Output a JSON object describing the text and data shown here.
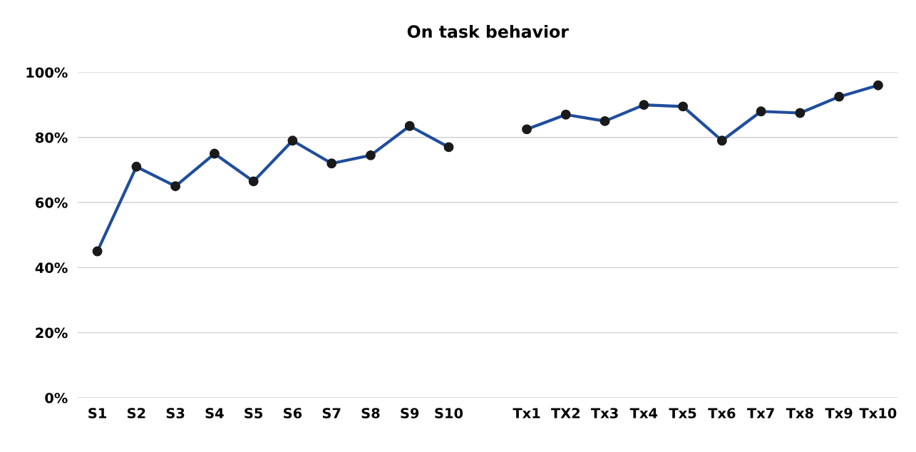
{
  "chart_data": {
    "type": "line",
    "title": "On task behavior",
    "categories": [
      "S1",
      "S2",
      "S3",
      "S4",
      "S5",
      "S6",
      "S7",
      "S8",
      "S9",
      "S10",
      null,
      "Tx1",
      "TX2",
      "Tx3",
      "Tx4",
      "Tx5",
      "Tx6",
      "Tx7",
      "Tx8",
      "Tx9",
      "Tx10"
    ],
    "series": [
      {
        "color": "#1f4e9c",
        "values": [
          45,
          71,
          65,
          75,
          66.5,
          79,
          72,
          74.5,
          83.5,
          77,
          null,
          82.5,
          87,
          85,
          90,
          89.5,
          79,
          88,
          87.5,
          92.5,
          96
        ]
      }
    ],
    "ylim": [
      0,
      100
    ],
    "yticks": [
      {
        "value": 0,
        "label": "0%"
      },
      {
        "value": 20,
        "label": "20%"
      },
      {
        "value": 40,
        "label": "40%"
      },
      {
        "value": 60,
        "label": "60%"
      },
      {
        "value": 80,
        "label": "80%"
      },
      {
        "value": 100,
        "label": "100%"
      }
    ],
    "grid": "y",
    "marker": "circle",
    "line_style": "solid"
  }
}
